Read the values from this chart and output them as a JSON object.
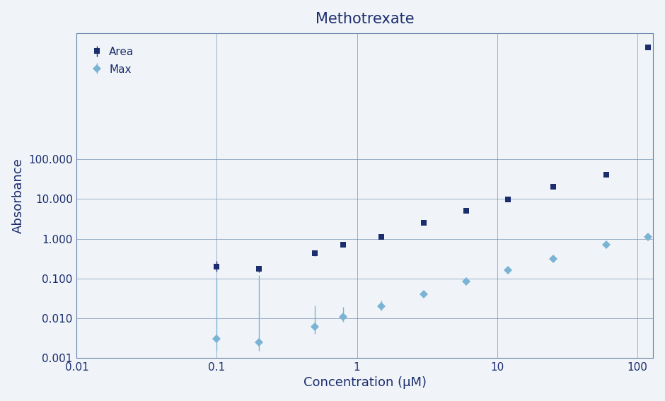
{
  "title": "Methotrexate",
  "xlabel": "Concentration (μM)",
  "ylabel": "Absorbance",
  "xlim": [
    0.01,
    130
  ],
  "ylim": [
    0.001,
    150000
  ],
  "background_color": "#f0f4f8",
  "max_color": "#7ab3d4",
  "area_color": "#1c2d6e",
  "grid_color": "#6080a8",
  "concentrations": [
    0.1,
    0.2,
    0.5,
    0.8,
    1.5,
    3.0,
    6.0,
    12.0,
    25.0,
    60.0,
    120.0
  ],
  "max_values": [
    0.003,
    0.0025,
    0.006,
    0.011,
    0.02,
    0.04,
    0.085,
    0.16,
    0.31,
    0.7,
    1.1
  ],
  "max_yerr_lo": [
    0.0015,
    0.001,
    0.002,
    0.003,
    0.004,
    0.006,
    0.008,
    0.015,
    0.025,
    0.05,
    0.04
  ],
  "max_yerr_hi": [
    0.1,
    0.12,
    0.015,
    0.008,
    0.008,
    0.01,
    0.012,
    0.02,
    0.03,
    0.055,
    0.04
  ],
  "area_values": [
    0.2,
    0.175,
    0.43,
    0.72,
    1.1,
    2.5,
    5.0,
    9.8,
    20.0,
    40.0,
    65000
  ],
  "area_yerr_lo": [
    0.05,
    0.03,
    0.06,
    0.08,
    0.05,
    0.2,
    0.3,
    0.5,
    1.0,
    2.0,
    0
  ],
  "area_yerr_hi": [
    0.08,
    0.03,
    0.07,
    0.08,
    0.05,
    0.2,
    0.3,
    0.5,
    1.5,
    3.0,
    0
  ],
  "title_color": "#1c2d6e",
  "label_color": "#1c2d6e",
  "tick_color": "#1c2d6e",
  "ytick_labels": [
    "0.001",
    "0.010",
    "0.100",
    "1.000",
    "10.000",
    "100.000"
  ],
  "ytick_values": [
    0.001,
    0.01,
    0.1,
    1.0,
    10.0,
    100.0
  ],
  "xtick_labels": [
    "0.01",
    "0.1",
    "1",
    "10",
    "100"
  ],
  "xtick_values": [
    0.01,
    0.1,
    1,
    10,
    100
  ]
}
